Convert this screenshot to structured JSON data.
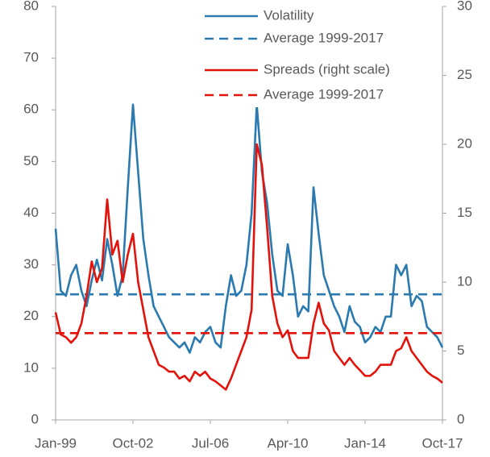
{
  "chart_data": {
    "type": "line",
    "categories": [
      "Jan-99",
      null,
      null,
      null,
      null,
      null,
      null,
      null,
      null,
      null,
      null,
      null,
      null,
      null,
      null,
      "Oct-02",
      null,
      null,
      null,
      null,
      null,
      null,
      null,
      null,
      null,
      null,
      null,
      null,
      null,
      null,
      "Jul-06",
      null,
      null,
      null,
      null,
      null,
      null,
      null,
      null,
      null,
      null,
      null,
      null,
      null,
      null,
      "Apr-10",
      null,
      null,
      null,
      null,
      null,
      null,
      null,
      null,
      null,
      null,
      null,
      null,
      null,
      null,
      "Jan-14",
      null,
      null,
      null,
      null,
      null,
      null,
      null,
      null,
      null,
      null,
      null,
      null,
      null,
      null,
      "Oct-17"
    ],
    "ylim": [
      0,
      80
    ],
    "yticks": [
      0,
      10,
      20,
      30,
      40,
      50,
      60,
      70,
      80
    ],
    "y2lim": [
      0,
      30
    ],
    "y2ticks": [
      0,
      5,
      10,
      15,
      20,
      25,
      30
    ],
    "series": [
      {
        "name": "Volatility",
        "color": "#2a7ab0",
        "values": [
          37,
          25,
          24,
          28,
          30,
          25,
          22,
          27,
          31,
          27,
          35,
          30,
          24,
          28,
          45,
          61,
          48,
          35,
          28,
          22,
          20,
          18,
          16,
          15,
          14,
          15,
          13,
          16,
          15,
          17,
          18,
          15,
          14,
          22,
          28,
          24,
          25,
          30,
          40,
          61,
          48,
          42,
          32,
          25,
          24,
          34,
          28,
          20,
          22,
          21,
          45,
          36,
          28,
          25,
          22,
          20,
          17,
          22,
          19,
          18,
          15,
          16,
          18,
          17,
          20,
          20,
          30,
          28,
          30,
          22,
          24,
          23,
          18,
          17,
          16,
          14
        ]
      },
      {
        "name": "Average 1999-2017",
        "color": "#2a7ab0",
        "dashed": true,
        "value": 24.3
      },
      {
        "name": "Spreads (right scale)",
        "color": "#e3120b",
        "axis": "y2",
        "values": [
          7.8,
          6.2,
          6,
          5.6,
          6,
          7,
          9,
          11.5,
          10,
          11,
          16,
          12,
          13,
          10,
          12,
          13.5,
          10,
          8,
          6,
          5,
          4,
          3.8,
          3.5,
          3.5,
          3,
          3.2,
          2.8,
          3.5,
          3.2,
          3.5,
          3,
          2.8,
          2.5,
          2.2,
          3,
          4,
          5,
          6,
          8,
          20,
          18.5,
          14,
          9,
          7,
          6,
          6.5,
          5,
          4.5,
          4.5,
          4.5,
          7,
          8.5,
          7,
          6.5,
          5,
          4.5,
          4,
          4.5,
          4,
          3.6,
          3.2,
          3.2,
          3.5,
          4,
          4,
          4,
          5,
          5.2,
          6,
          5,
          4.5,
          4,
          3.5,
          3.2,
          3,
          2.7
        ]
      },
      {
        "name": "Average 1999-2017",
        "color": "#e3120b",
        "dashed": true,
        "axis": "y2",
        "value": 6.3
      }
    ]
  }
}
